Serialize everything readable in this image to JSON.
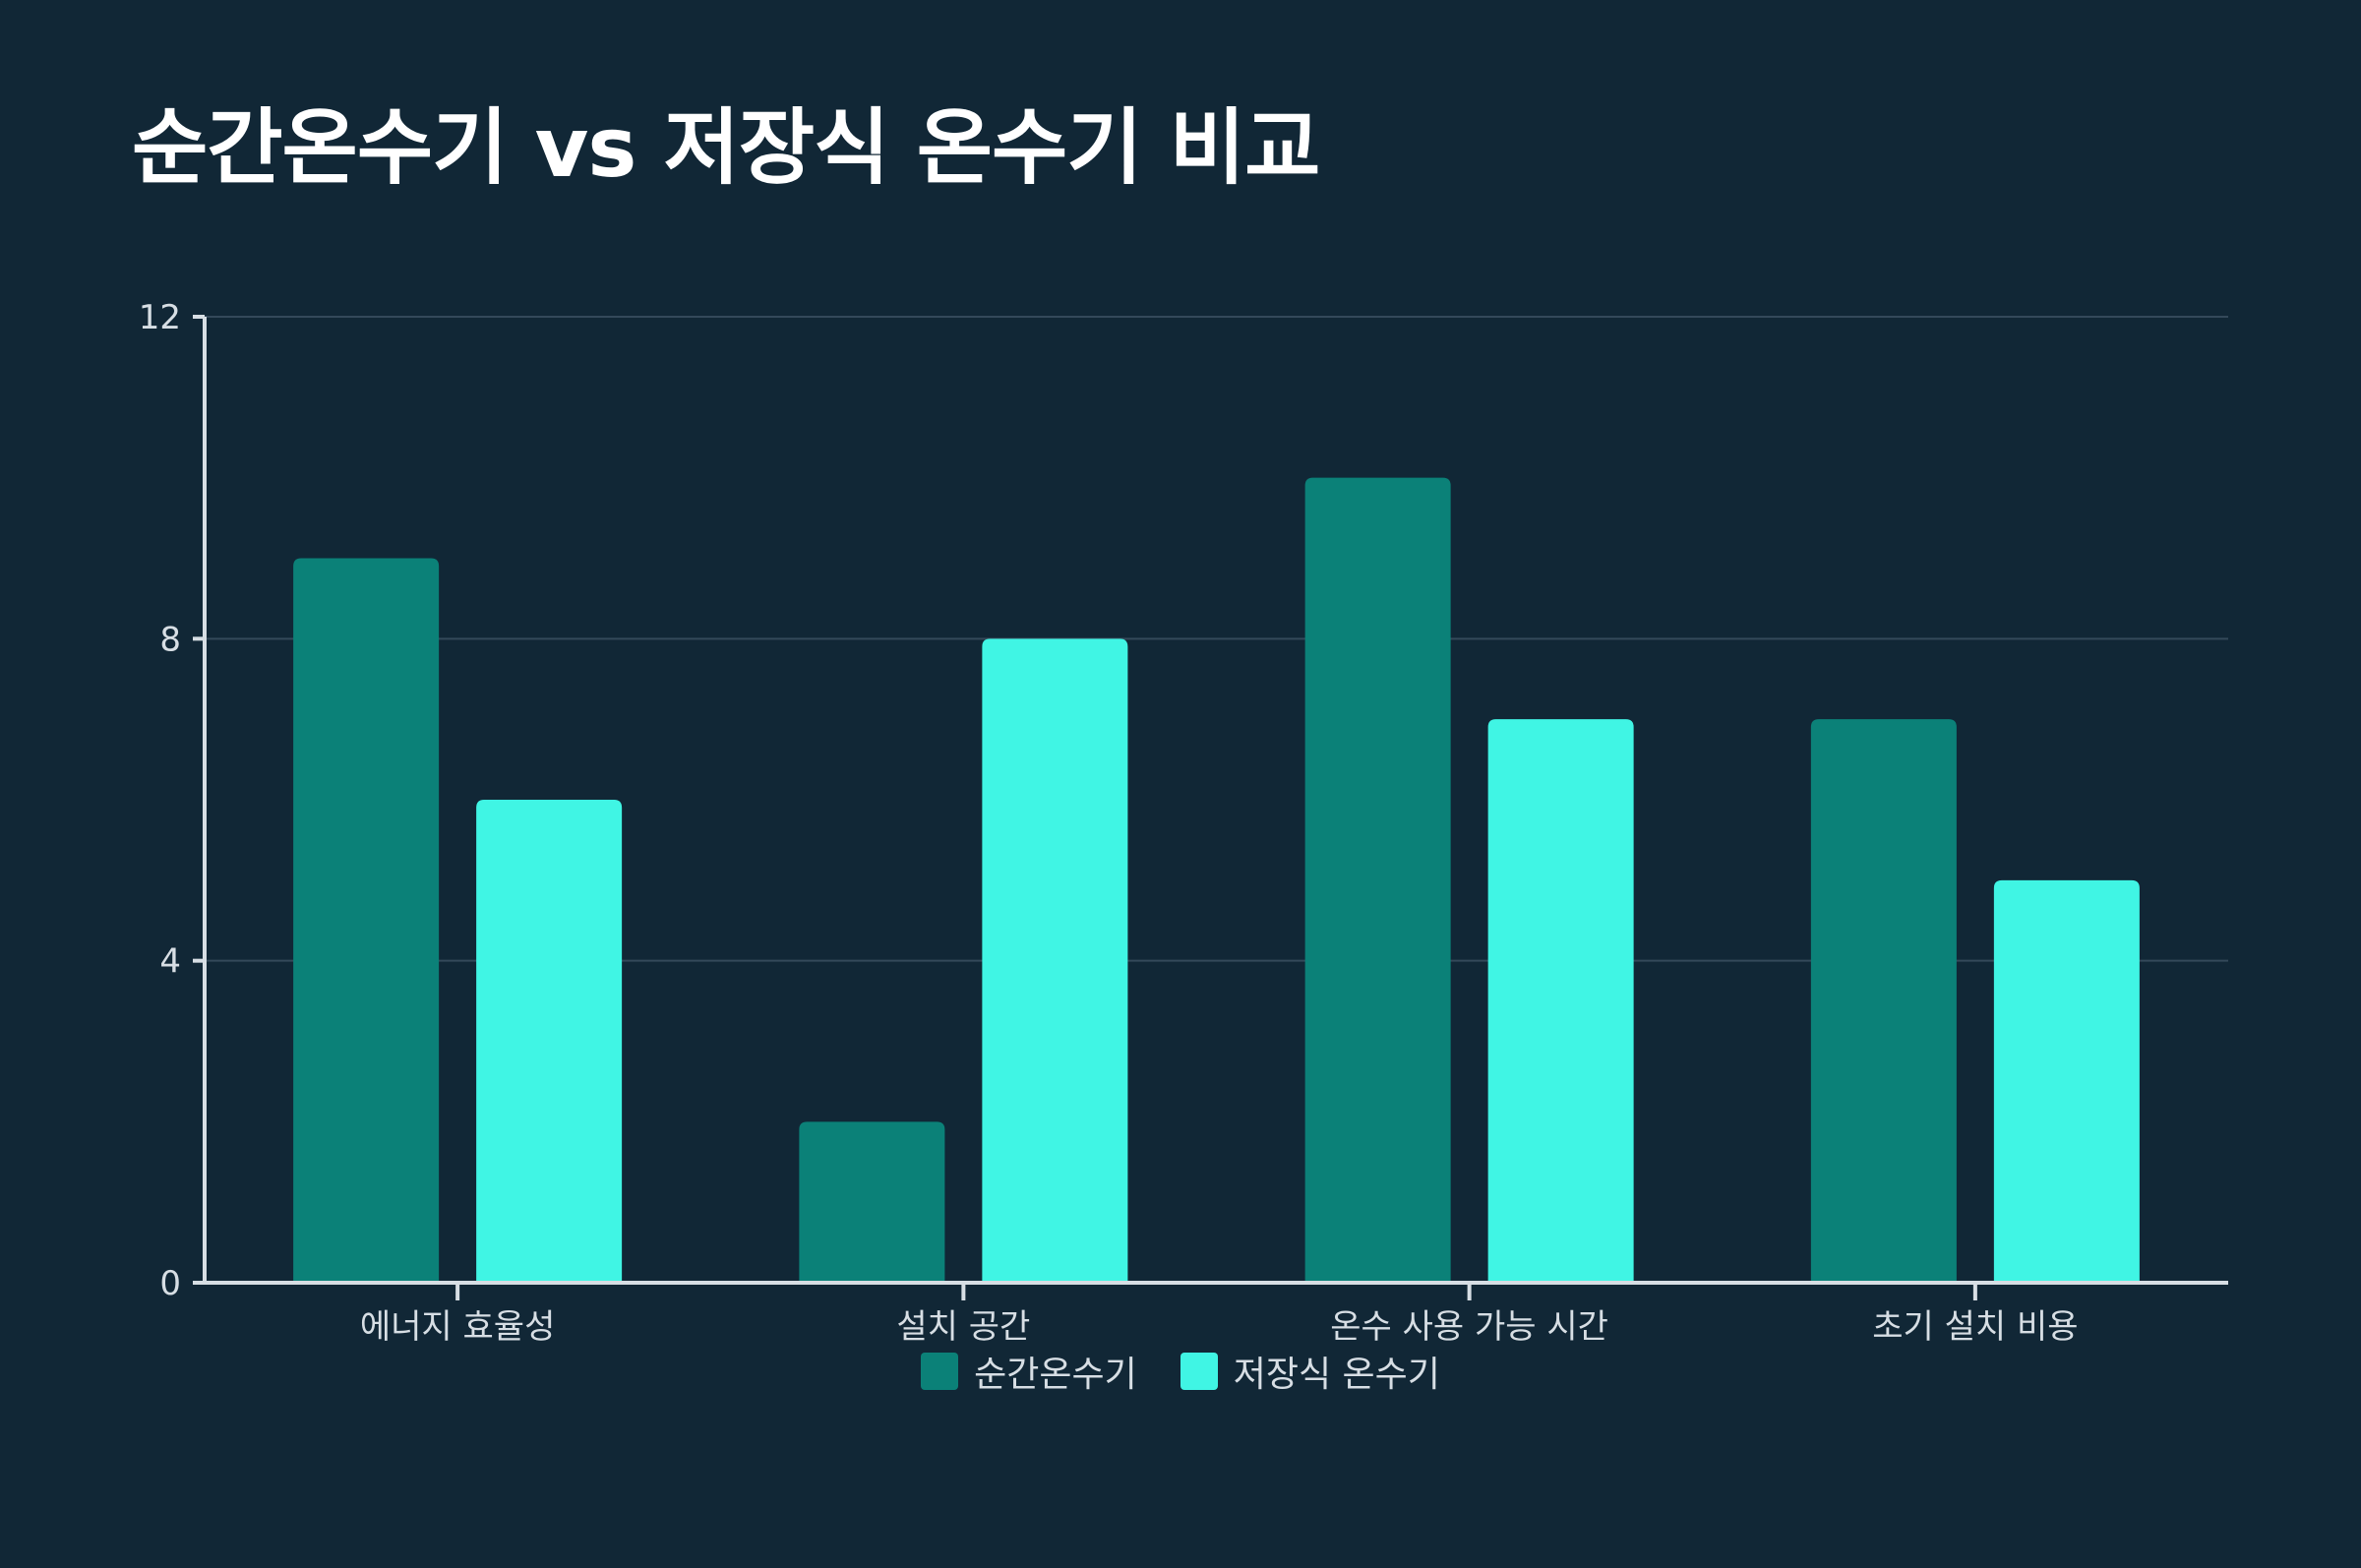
{
  "chart_data": {
    "type": "bar",
    "title": "순간온수기 vs 저장식 온수기 비교",
    "xlabel": "",
    "ylabel": "",
    "categories": [
      "에너지 효율성",
      "설치 공간",
      "온수 사용 가능 시간",
      "초기 설치 비용"
    ],
    "series": [
      {
        "name": "순간온수기",
        "values": [
          9,
          2,
          10,
          7
        ],
        "color": "#0b8178"
      },
      {
        "name": "저장식 온수기",
        "values": [
          6,
          8,
          7,
          5
        ],
        "color": "#40f5e4"
      }
    ],
    "ylim": [
      0,
      12
    ],
    "yticks": [
      0,
      4,
      8,
      12
    ],
    "grid": true,
    "legend": "bottom-center",
    "colors": {
      "background": "#112736",
      "grid": "#34495a",
      "axis": "#d7dee4",
      "text": "#d7dee4",
      "title": "#ffffff"
    }
  }
}
